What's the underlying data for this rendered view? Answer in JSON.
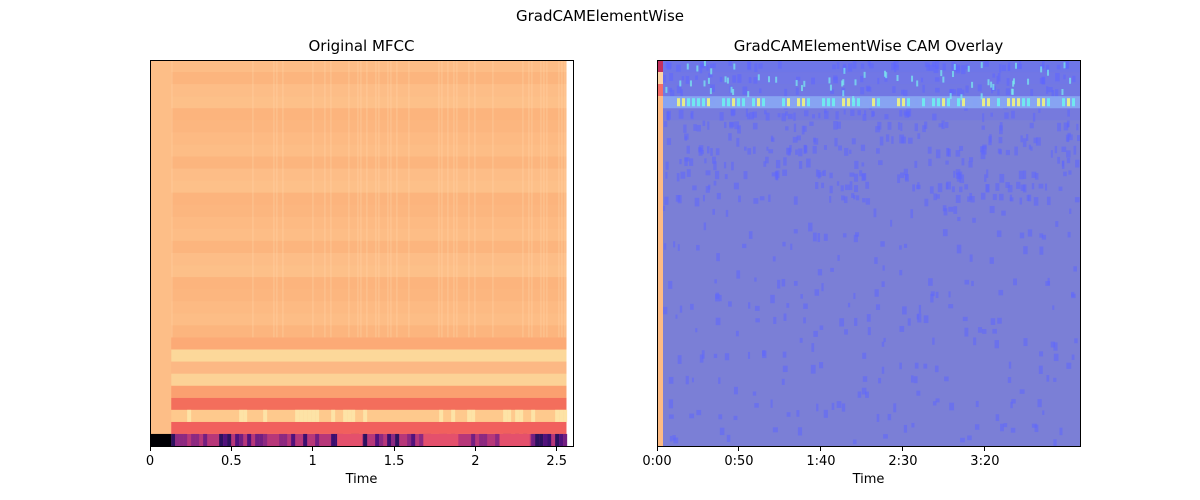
{
  "figure": {
    "title": "GradCAMElementWise"
  },
  "chart_data": [
    {
      "type": "heatmap",
      "title": "Original MFCC",
      "xlabel": "Time",
      "ylabel": "",
      "x_unit": "seconds",
      "xlim": [
        0,
        2.6
      ],
      "data_extent_x": [
        0,
        2.56
      ],
      "y_ticks": "none",
      "colormap": "magma",
      "grid": false,
      "legend": "none",
      "x_ticks": [
        {
          "value": 0,
          "label": "0"
        },
        {
          "value": 0.5,
          "label": "0.5"
        },
        {
          "value": 1,
          "label": "1"
        },
        {
          "value": 1.5,
          "label": "1.5"
        },
        {
          "value": 2,
          "label": "2"
        },
        {
          "value": 2.5,
          "label": "2.5"
        }
      ],
      "n_coefficients": 32,
      "silent_lead_in_seconds": 0.13,
      "dominant_color": "#fdbb84"
    },
    {
      "type": "heatmap",
      "title": "GradCAMElementWise CAM Overlay",
      "xlabel": "Time",
      "ylabel": "",
      "xlim": [
        0,
        258
      ],
      "y_ticks": "none",
      "colormap": "jet overlay on MFCC",
      "grid": false,
      "legend": "none",
      "x_ticks": [
        {
          "value": 0,
          "label": "0:00"
        },
        {
          "value": 50,
          "label": "0:50"
        },
        {
          "value": 100,
          "label": "1:40"
        },
        {
          "value": 150,
          "label": "2:30"
        },
        {
          "value": 200,
          "label": "3:20"
        }
      ],
      "n_coefficients": 32,
      "hot_rows_from_top": [
        3
      ],
      "dominant_color": "#7b7fd6"
    }
  ]
}
